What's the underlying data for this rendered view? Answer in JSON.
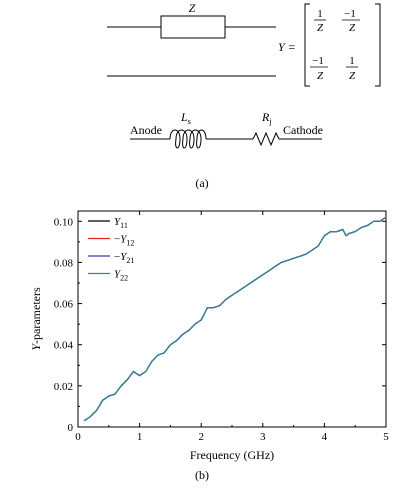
{
  "panel_a": {
    "impedance_label": "Z",
    "admittance_prefix": "Y =",
    "matrix": {
      "r1c1_num": "1",
      "r1c1_den": "Z",
      "r1c2_num": "−1",
      "r1c2_den": "Z",
      "r2c1_num": "−1",
      "r2c1_den": "Z",
      "r2c2_num": "1",
      "r2c2_den": "Z"
    },
    "anode_label": "Anode",
    "cathode_label": "Cathode",
    "inductor_label": "L",
    "inductor_sub": "s",
    "resistor_label": "R",
    "resistor_sub": "j",
    "caption": "(a)"
  },
  "panel_b": {
    "caption": "(b)"
  },
  "chart_data": {
    "type": "line",
    "xlabel": "Frequency (GHz)",
    "ylabel_italic": "Y",
    "ylabel_rest": "-parameters",
    "xlim": [
      0,
      5
    ],
    "ylim": [
      0,
      0.105
    ],
    "xticks": [
      "0",
      "1",
      "2",
      "3",
      "4",
      "5"
    ],
    "yticks": [
      "0",
      "0.02",
      "0.04",
      "0.06",
      "0.08",
      "0.10"
    ],
    "x": [
      0.1,
      0.2,
      0.3,
      0.4,
      0.5,
      0.6,
      0.7,
      0.8,
      0.9,
      1.0,
      1.1,
      1.2,
      1.3,
      1.4,
      1.5,
      1.6,
      1.7,
      1.8,
      1.9,
      2.0,
      2.1,
      2.2,
      2.3,
      2.4,
      2.5,
      2.6,
      2.7,
      2.8,
      2.9,
      3.0,
      3.1,
      3.2,
      3.3,
      3.4,
      3.5,
      3.6,
      3.7,
      3.8,
      3.9,
      4.0,
      4.1,
      4.2,
      4.3,
      4.35,
      4.4,
      4.5,
      4.6,
      4.7,
      4.8,
      4.9,
      5.0
    ],
    "series": [
      {
        "name_main": "Y",
        "name_sub": "11",
        "name_prefix": "",
        "color": "#000000",
        "values": [
          0.003,
          0.005,
          0.008,
          0.013,
          0.015,
          0.016,
          0.02,
          0.023,
          0.027,
          0.025,
          0.027,
          0.032,
          0.035,
          0.036,
          0.04,
          0.042,
          0.045,
          0.047,
          0.05,
          0.052,
          0.058,
          0.058,
          0.059,
          0.062,
          0.064,
          0.066,
          0.068,
          0.07,
          0.072,
          0.074,
          0.076,
          0.078,
          0.08,
          0.081,
          0.082,
          0.083,
          0.084,
          0.086,
          0.088,
          0.093,
          0.095,
          0.095,
          0.096,
          0.093,
          0.094,
          0.095,
          0.097,
          0.098,
          0.1,
          0.1,
          0.102
        ]
      },
      {
        "name_main": "Y",
        "name_sub": "12",
        "name_prefix": "−",
        "color": "#e8231e",
        "values": [
          0.003,
          0.005,
          0.008,
          0.013,
          0.015,
          0.016,
          0.02,
          0.023,
          0.027,
          0.025,
          0.027,
          0.032,
          0.035,
          0.036,
          0.04,
          0.042,
          0.045,
          0.047,
          0.05,
          0.052,
          0.058,
          0.058,
          0.059,
          0.062,
          0.064,
          0.066,
          0.068,
          0.07,
          0.072,
          0.074,
          0.076,
          0.078,
          0.08,
          0.081,
          0.082,
          0.083,
          0.084,
          0.086,
          0.088,
          0.093,
          0.095,
          0.095,
          0.096,
          0.093,
          0.094,
          0.095,
          0.097,
          0.098,
          0.1,
          0.1,
          0.102
        ]
      },
      {
        "name_main": "Y",
        "name_sub": "21",
        "name_prefix": "−",
        "color": "#3a3aa8",
        "values": [
          0.003,
          0.005,
          0.008,
          0.013,
          0.015,
          0.016,
          0.02,
          0.023,
          0.027,
          0.025,
          0.027,
          0.032,
          0.035,
          0.036,
          0.04,
          0.042,
          0.045,
          0.047,
          0.05,
          0.052,
          0.058,
          0.058,
          0.059,
          0.062,
          0.064,
          0.066,
          0.068,
          0.07,
          0.072,
          0.074,
          0.076,
          0.078,
          0.08,
          0.081,
          0.082,
          0.083,
          0.084,
          0.086,
          0.088,
          0.093,
          0.095,
          0.095,
          0.096,
          0.093,
          0.094,
          0.095,
          0.097,
          0.098,
          0.1,
          0.1,
          0.102
        ]
      },
      {
        "name_main": "Y",
        "name_sub": "22",
        "name_prefix": "",
        "color": "#2a8a9a",
        "values": [
          0.003,
          0.005,
          0.008,
          0.013,
          0.015,
          0.016,
          0.02,
          0.023,
          0.027,
          0.025,
          0.027,
          0.032,
          0.035,
          0.036,
          0.04,
          0.042,
          0.045,
          0.047,
          0.05,
          0.052,
          0.058,
          0.058,
          0.059,
          0.062,
          0.064,
          0.066,
          0.068,
          0.07,
          0.072,
          0.074,
          0.076,
          0.078,
          0.08,
          0.081,
          0.082,
          0.083,
          0.084,
          0.086,
          0.088,
          0.093,
          0.095,
          0.095,
          0.096,
          0.093,
          0.094,
          0.095,
          0.097,
          0.098,
          0.1,
          0.1,
          0.102
        ]
      }
    ],
    "legend_position": "top-left",
    "grid": false
  }
}
